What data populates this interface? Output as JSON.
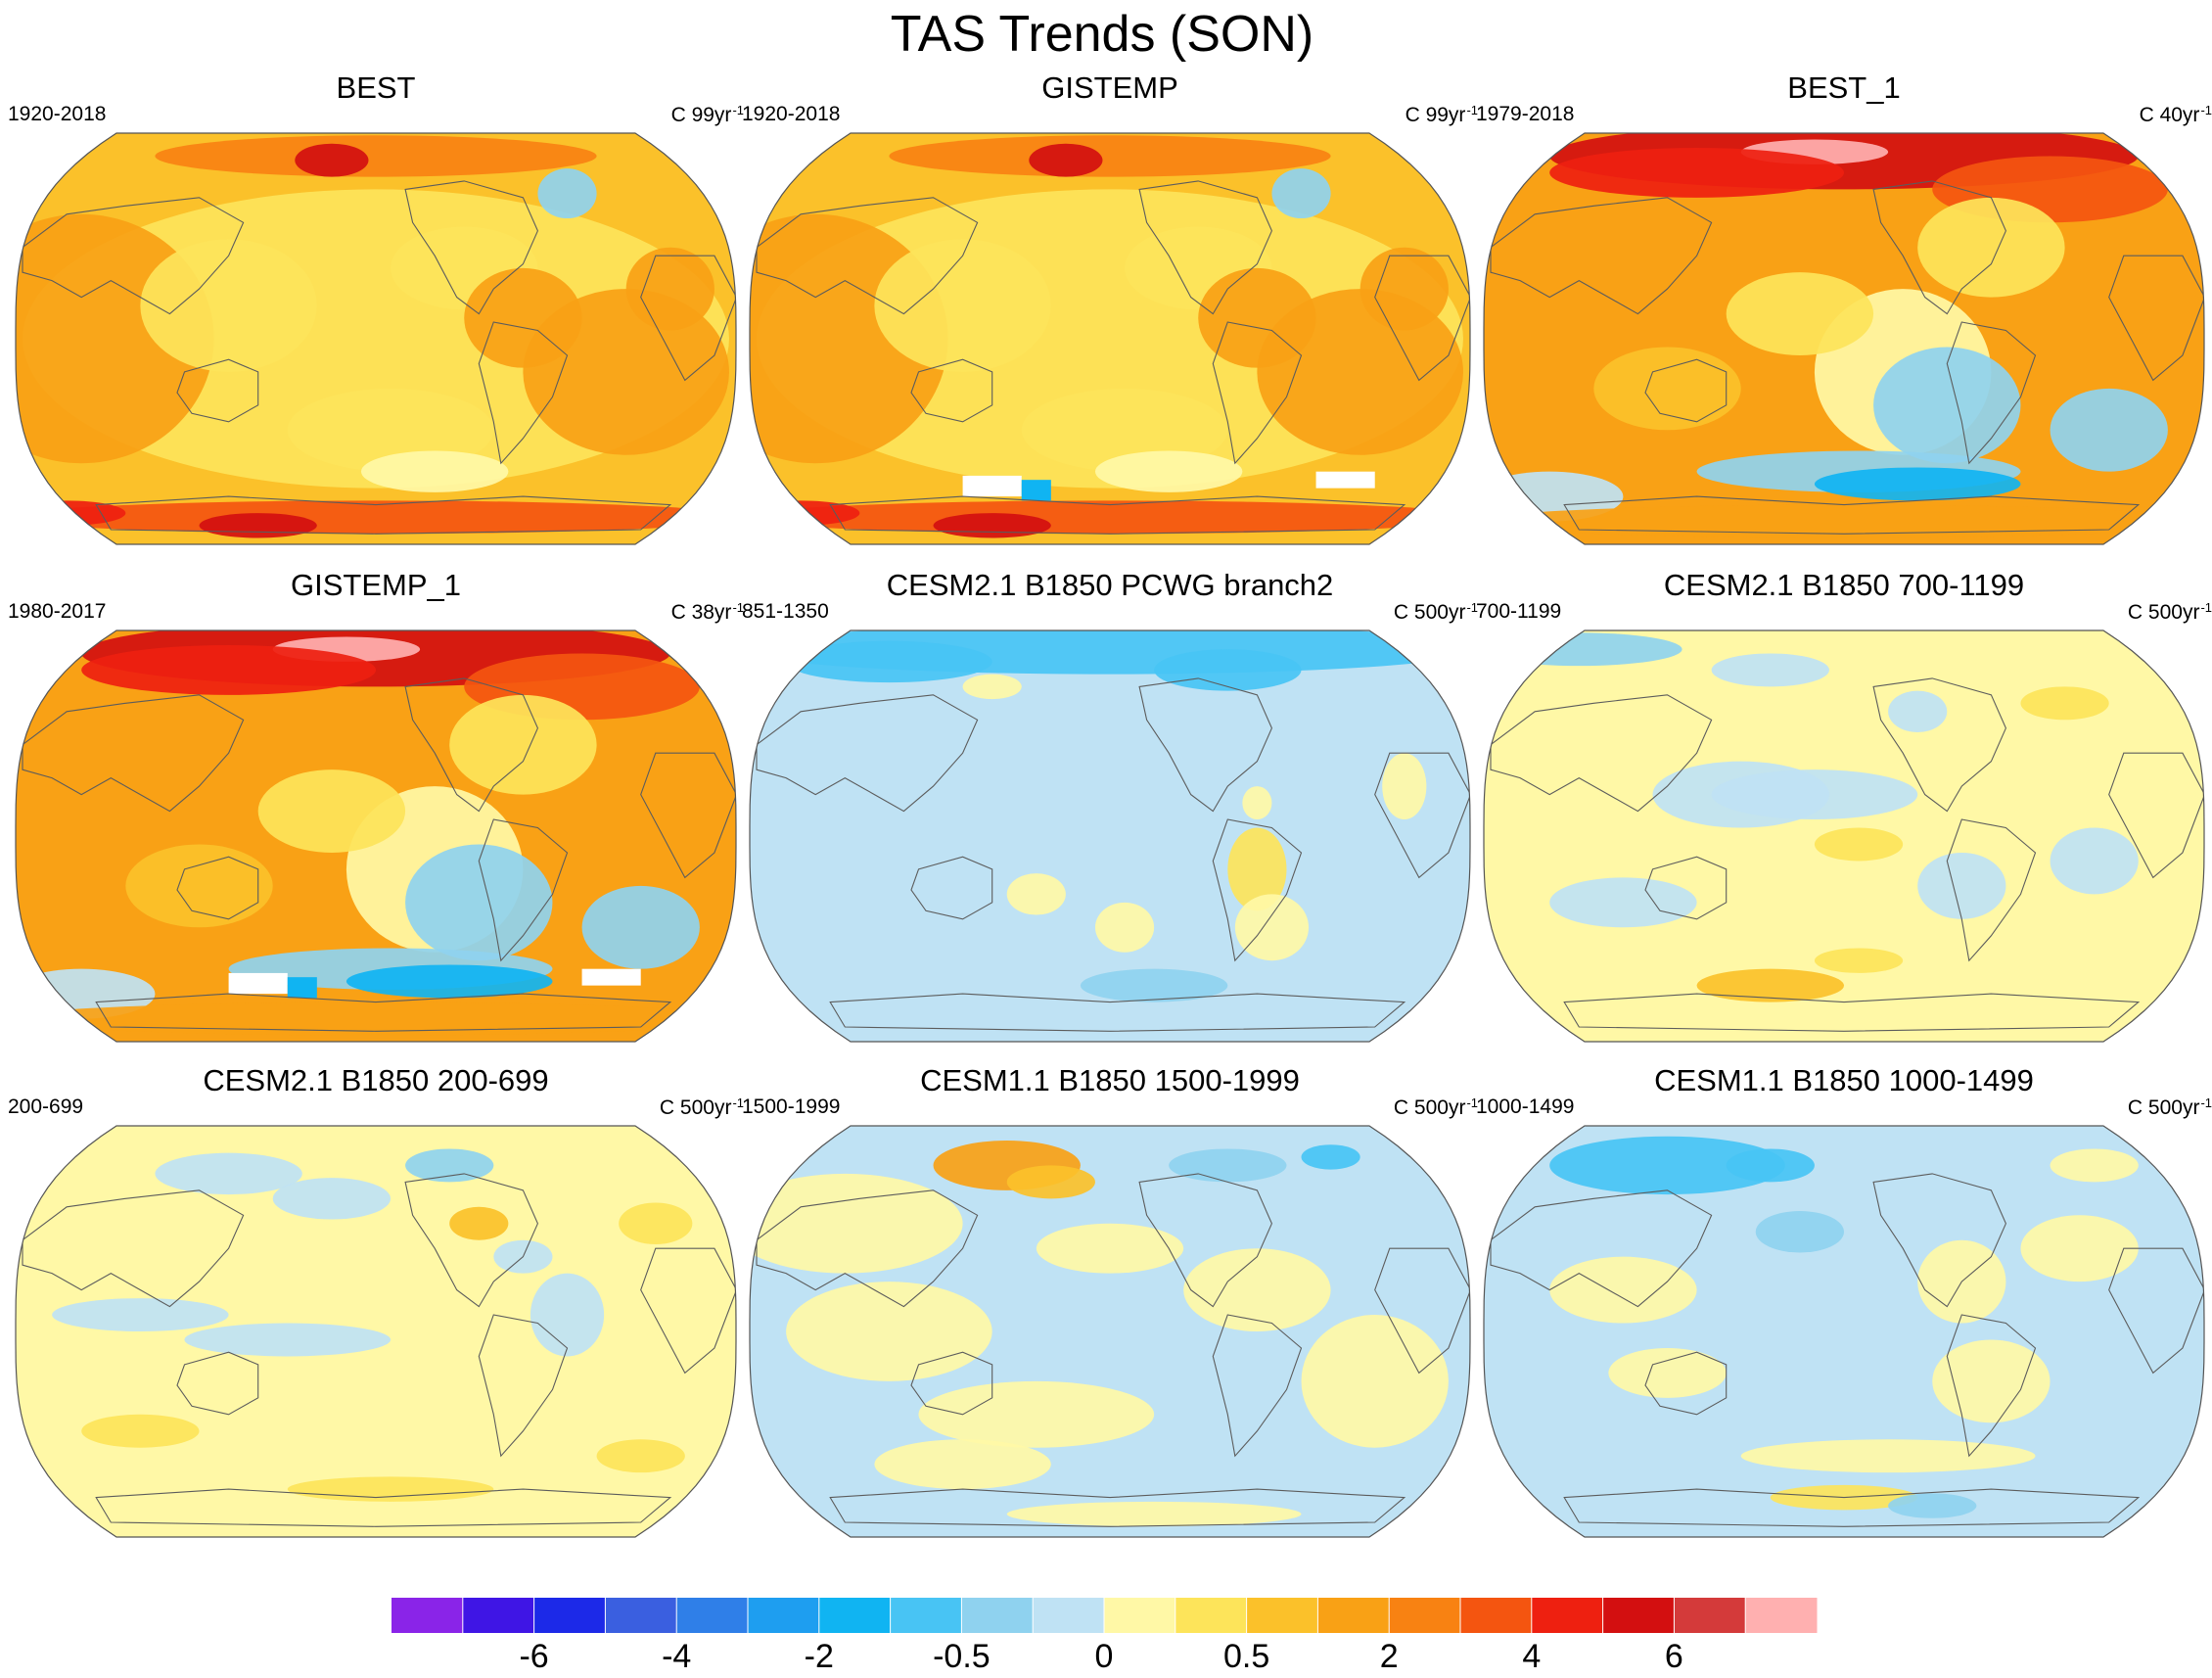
{
  "title": "TAS Trends (SON)",
  "panels": [
    {
      "title": "BEST",
      "period": "1920-2018",
      "units": "C",
      "trend": "99yr",
      "sup": "-1",
      "pattern": "obs_century",
      "hole": false
    },
    {
      "title": "GISTEMP",
      "period": "1920-2018",
      "units": "C",
      "trend": "99yr",
      "sup": "-1",
      "pattern": "obs_century",
      "hole": true
    },
    {
      "title": "BEST_1",
      "period": "1979-2018",
      "units": "C",
      "trend": "40yr",
      "sup": "-1",
      "pattern": "obs_recent",
      "hole": false
    },
    {
      "title": "GISTEMP_1",
      "period": "1980-2017",
      "units": "C",
      "trend": "38yr",
      "sup": "-1",
      "pattern": "obs_recent",
      "hole": true
    },
    {
      "title": "CESM2.1 B1850 PCWG branch2",
      "period": "851-1350",
      "units": "C",
      "trend": "500yr",
      "sup": "-1",
      "pattern": "ctrl_cool",
      "hole": false
    },
    {
      "title": "CESM2.1 B1850 700-1199",
      "period": "700-1199",
      "units": "C",
      "trend": "500yr",
      "sup": "-1",
      "pattern": "ctrl_warm",
      "hole": false
    },
    {
      "title": "CESM2.1 B1850 200-699",
      "period": "200-699",
      "units": "C",
      "trend": "500yr",
      "sup": "-1",
      "pattern": "ctrl_warm2",
      "hole": false
    },
    {
      "title": "CESM1.1 B1850 1500-1999",
      "period": "1500-1999",
      "units": "C",
      "trend": "500yr",
      "sup": "-1",
      "pattern": "ctrl_mixed",
      "hole": false
    },
    {
      "title": "CESM1.1 B1850 1000-1499",
      "period": "1000-1499",
      "units": "C",
      "trend": "500yr",
      "sup": "-1",
      "pattern": "ctrl_cool2",
      "hole": false
    }
  ],
  "colorbar": {
    "colors": [
      "#8a24e8",
      "#3f15e5",
      "#1c29e8",
      "#3a5fe0",
      "#2f7fe8",
      "#1e9ef0",
      "#10b4f2",
      "#48c4f4",
      "#8fd2ef",
      "#bfe2f4",
      "#fff8a6",
      "#fde45a",
      "#fbc12a",
      "#f9a115",
      "#f88212",
      "#f45510",
      "#ee2010",
      "#d30f10",
      "#d43a3a",
      "#ffb0b0"
    ],
    "labels": [
      "-6",
      "-4",
      "-2",
      "-0.5",
      "0",
      "0.5",
      "2",
      "4",
      "6"
    ],
    "label_boundaries": [
      2,
      4,
      6,
      8,
      10,
      12,
      14,
      16,
      18
    ]
  },
  "map_colors": {
    "land": "#5c5c5c",
    "missing": "#ffffff"
  }
}
